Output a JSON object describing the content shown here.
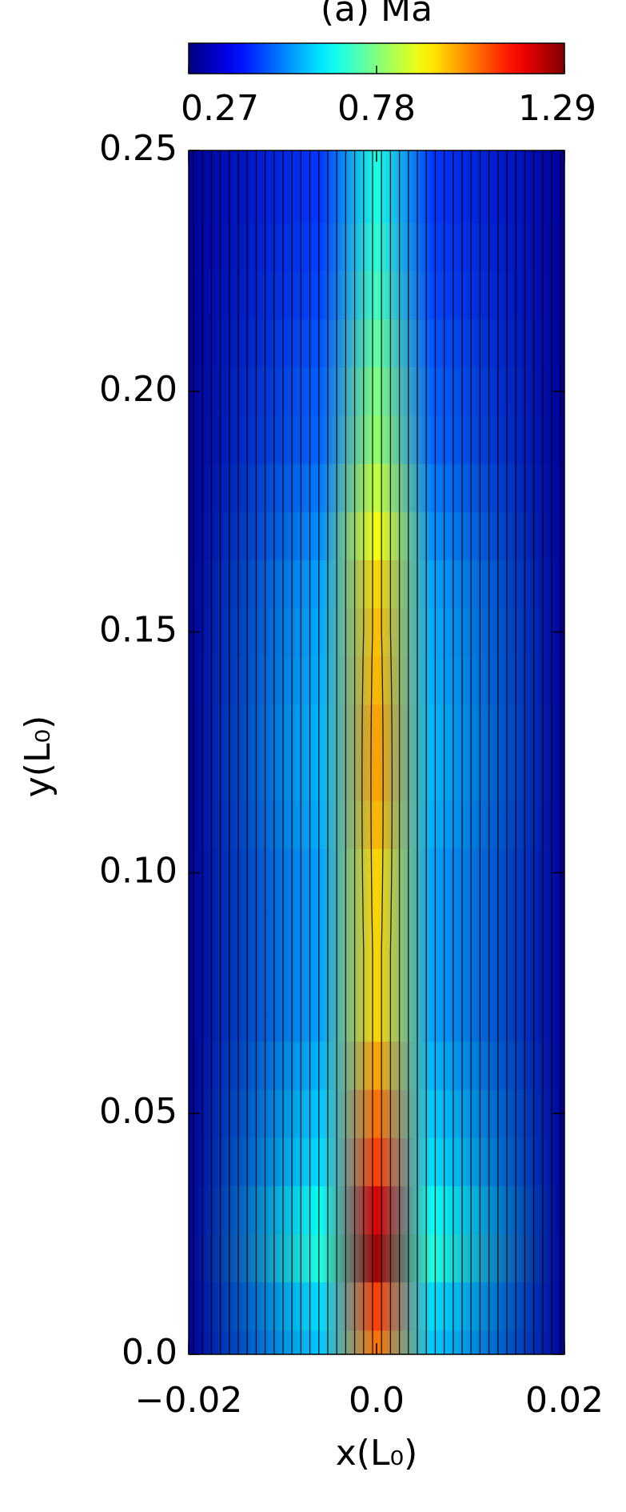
{
  "chart_data": {
    "type": "heatmap",
    "title": "(a) Ma",
    "xlabel": "x(L₀)",
    "ylabel": "y(L₀)",
    "colormap": "jet",
    "clim": [
      0.27,
      1.29
    ],
    "cticks": [
      0.27,
      0.78,
      1.29
    ],
    "xlim": [
      -0.02,
      0.02
    ],
    "xticks": [
      {
        "value": -0.02,
        "label": "−0.02"
      },
      {
        "value": 0,
        "label": "0.0"
      },
      0.02
    ],
    "ylim": [
      0,
      0.25
    ],
    "yticks": [
      {
        "value": 0,
        "label": "0.0"
      },
      0.05,
      {
        "value": 0.1,
        "label": "0.10"
      },
      0.15,
      {
        "value": 0.2,
        "label": "0.20"
      },
      0.25
    ],
    "y": [
      0,
      0.01,
      0.02,
      0.03,
      0.04,
      0.05,
      0.06,
      0.07,
      0.08,
      0.09,
      0.1,
      0.11,
      0.12,
      0.13,
      0.14,
      0.15,
      0.16,
      0.17,
      0.18,
      0.19,
      0.2,
      0.21,
      0.22,
      0.23,
      0.24,
      0.25
    ],
    "centerline_values": [
      1.05,
      1.1,
      1.25,
      1.2,
      1.1,
      1.05,
      1.0,
      0.95,
      0.95,
      0.95,
      0.95,
      0.98,
      1.0,
      1.0,
      0.98,
      0.97,
      0.95,
      0.9,
      0.85,
      0.8,
      0.78,
      0.75,
      0.72,
      0.7,
      0.68,
      0.68
    ],
    "edge_value": 0.3,
    "jet_halfwidth": 0.006
  }
}
